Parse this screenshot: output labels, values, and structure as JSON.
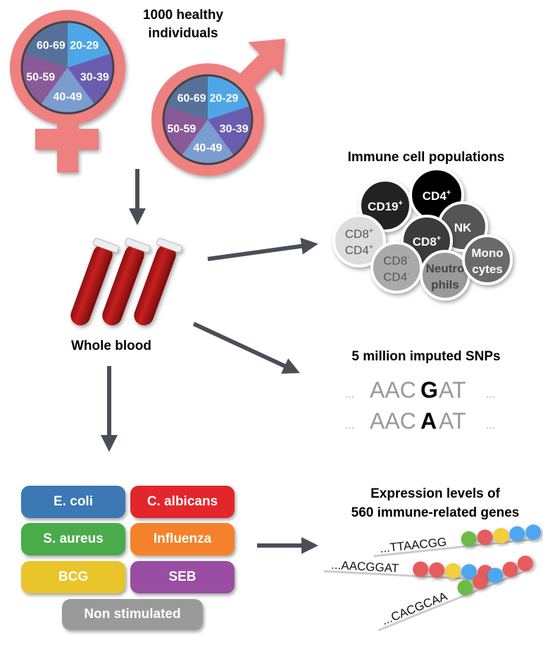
{
  "cohort": {
    "title_line1": "1000 healthy",
    "title_line2": "individuals",
    "age_groups": [
      "20-29",
      "30-39",
      "40-49",
      "50-59",
      "60-69"
    ],
    "age_colors": [
      "#4fa6e6",
      "#6a5db0",
      "#7a9ccf",
      "#8a5998",
      "#557199"
    ],
    "symbol_color": "#ee8080"
  },
  "blood": {
    "label": "Whole blood"
  },
  "immune": {
    "title": "Immune cell populations",
    "cells": [
      {
        "l1": "CD19",
        "s1": "+",
        "l2": "",
        "s2": "",
        "fill": "#222222",
        "text": "#ffffff"
      },
      {
        "l1": "CD4",
        "s1": "+",
        "l2": "",
        "s2": "",
        "fill": "#000000",
        "text": "#ffffff"
      },
      {
        "l1": "NK",
        "s1": "",
        "l2": "",
        "s2": "",
        "fill": "#555555",
        "text": "#ffffff"
      },
      {
        "l1": "CD8",
        "s1": "+",
        "l2": "",
        "s2": "",
        "fill": "#3a3a3a",
        "text": "#ffffff"
      },
      {
        "l1": "CD8",
        "s1": "+",
        "l2": "CD4",
        "s2": "+",
        "fill": "#dddddd",
        "text": "#555555"
      },
      {
        "l1": "CD8",
        "s1": "-",
        "l2": "CD4",
        "s2": "-",
        "fill": "#aaaaaa",
        "text": "#555555"
      },
      {
        "l1": "Neutro",
        "s1": "",
        "l2": "phils",
        "s2": "",
        "fill": "#999999",
        "text": "#444444"
      },
      {
        "l1": "Mono",
        "s1": "",
        "l2": "cytes",
        "s2": "",
        "fill": "#6a6a6a",
        "text": "#ffffff"
      }
    ]
  },
  "snps": {
    "title": "5 million imputed SNPs",
    "seq1": {
      "pre": "AAC",
      "snp": "G",
      "post": "AT"
    },
    "seq2": {
      "pre": "AAC",
      "snp": "A",
      "post": "AT"
    },
    "dots": "..."
  },
  "stimuli": [
    {
      "label": "E. coli",
      "color": "#3b78b4"
    },
    {
      "label": "C. albicans",
      "color": "#e2262b"
    },
    {
      "label": "S. aureus",
      "color": "#4aab4a"
    },
    {
      "label": "Influenza",
      "color": "#f5822a"
    },
    {
      "label": "BCG",
      "color": "#e9c52b"
    },
    {
      "label": "SEB",
      "color": "#994ea3"
    },
    {
      "label": "Non stimulated",
      "color": "#9a9a9a"
    }
  ],
  "expression": {
    "title_line1": "Expression levels of",
    "title_line2": "560 immune-related genes",
    "seqs": [
      "...TTAACGG",
      "...AACGGAT",
      "...CACGCAA"
    ],
    "bead_colors": [
      [
        "#6cbb45",
        "#e65c5c",
        "#f2cf3a",
        "#4fa6f0",
        "#4fa6f0"
      ],
      [
        "#e65c5c",
        "#e65c5c",
        "#f2cf3a",
        "#4fa6f0",
        "#e65c5c"
      ],
      [
        "#6cbb45",
        "#e65c5c",
        "#4fa6f0",
        "#e65c5c",
        "#e65c5c"
      ]
    ]
  }
}
